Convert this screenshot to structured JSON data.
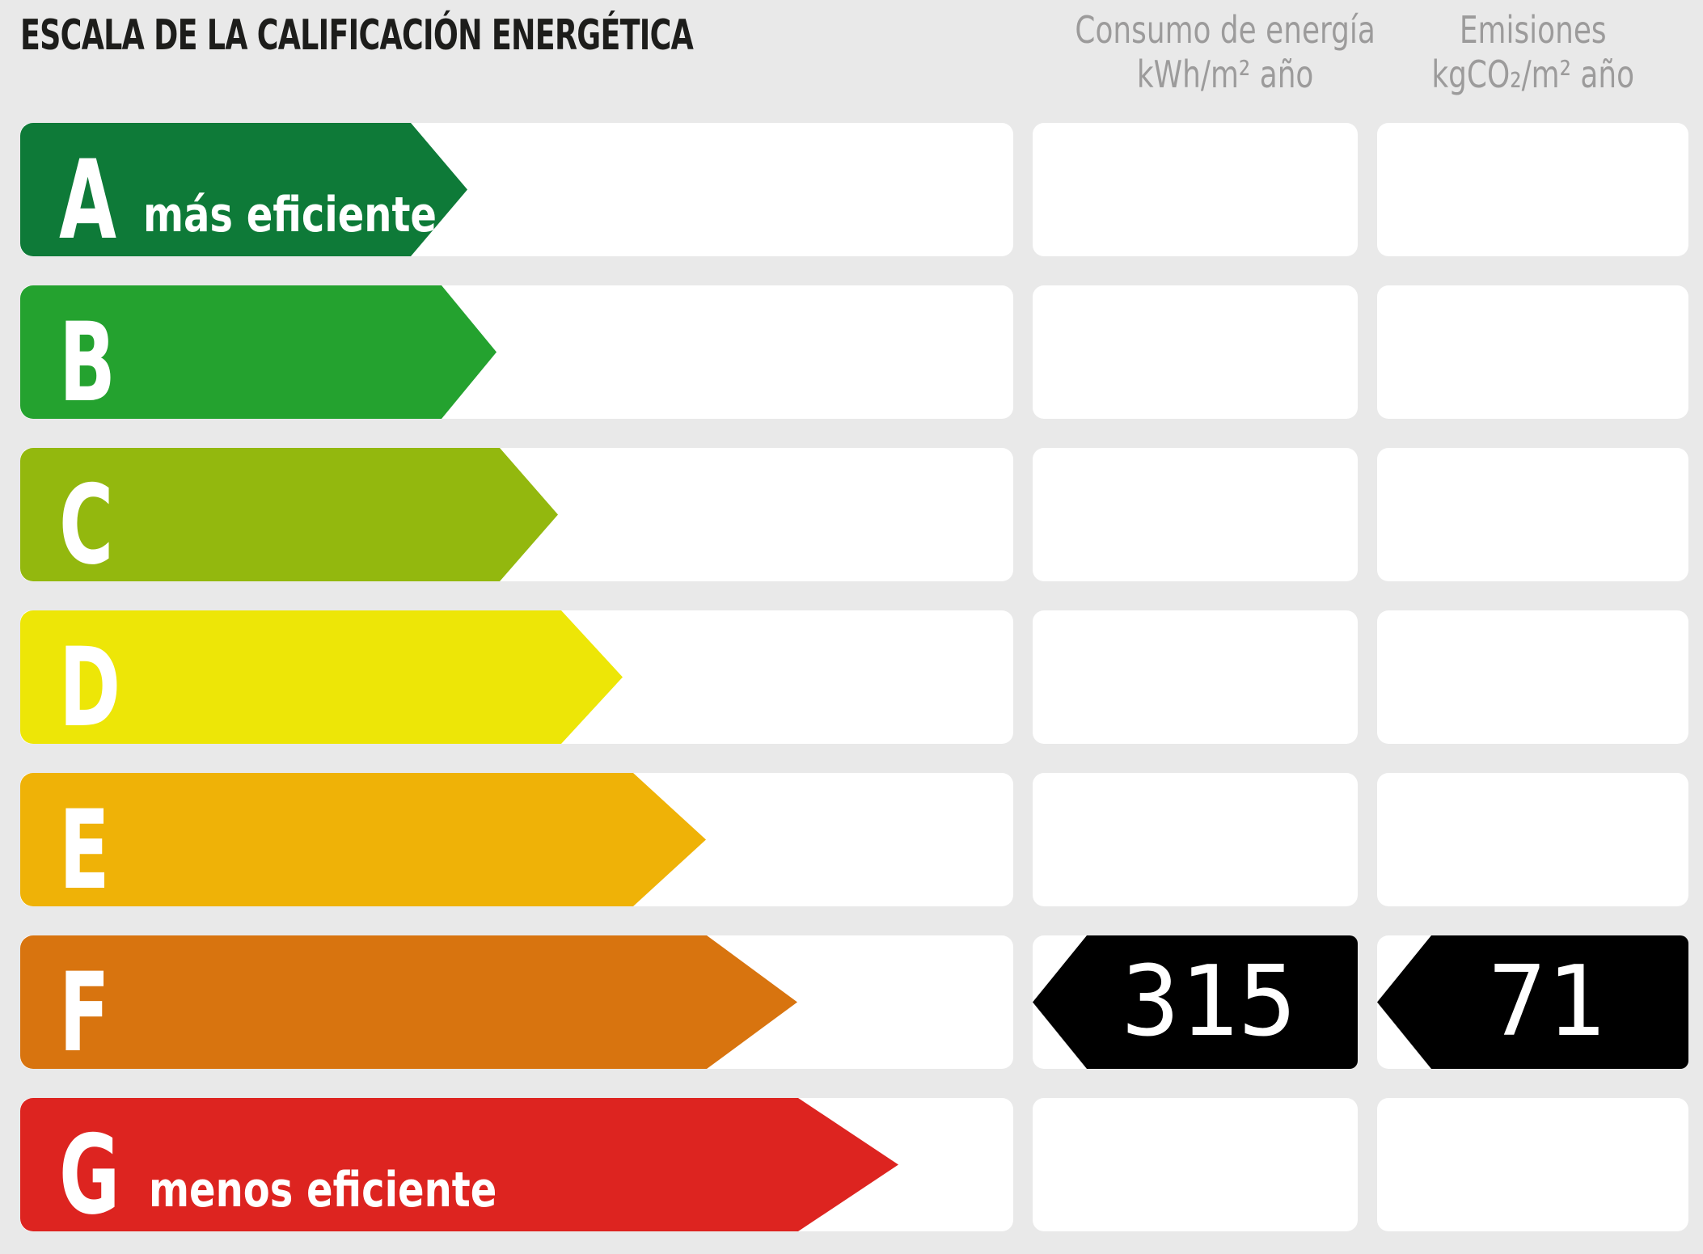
{
  "title": "ESCALA DE LA CALIFICACIÓN ENERGÉTICA",
  "columns": {
    "consumption": {
      "line1": "Consumo de energía",
      "line2": "kWh/m² año"
    },
    "emissions": {
      "line1": "Emisiones",
      "line2": "kgCO₂/m² año"
    }
  },
  "scale": {
    "ratings": [
      {
        "letter": "A",
        "caption": "más eficiente",
        "color": "#0e7a38",
        "arrow_width": 553,
        "tip_depth": 70
      },
      {
        "letter": "B",
        "caption": "",
        "color": "#24a22f",
        "arrow_width": 589,
        "tip_depth": 68
      },
      {
        "letter": "C",
        "caption": "",
        "color": "#93b80e",
        "arrow_width": 665,
        "tip_depth": 72
      },
      {
        "letter": "D",
        "caption": "",
        "color": "#ede607",
        "arrow_width": 745,
        "tip_depth": 76
      },
      {
        "letter": "E",
        "caption": "",
        "color": "#efb207",
        "arrow_width": 848,
        "tip_depth": 90
      },
      {
        "letter": "F",
        "caption": "",
        "color": "#d8740f",
        "arrow_width": 961,
        "tip_depth": 112
      },
      {
        "letter": "G",
        "caption": "menos eficiente",
        "color": "#dd2420",
        "arrow_width": 1086,
        "tip_depth": 124
      }
    ]
  },
  "result": {
    "rating_letter": "F",
    "consumption_value": "315",
    "emissions_value": "71",
    "arrow_color": "#000000",
    "arrow_tip_depth": 67,
    "text_color": "#ffffff"
  },
  "colors": {
    "background": "#e9e9e9",
    "track_background": "#ffffff",
    "title_text": "#1d1d1b",
    "header_text": "#9c9b9b"
  },
  "chart_data": {
    "type": "bar",
    "title": "ESCALA DE LA CALIFICACIÓN ENERGÉTICA",
    "categories": [
      "A",
      "B",
      "C",
      "D",
      "E",
      "F",
      "G"
    ],
    "values": [
      553,
      589,
      665,
      745,
      848,
      961,
      1086
    ],
    "colors": [
      "#0e7a38",
      "#24a22f",
      "#93b80e",
      "#ede607",
      "#efb207",
      "#d8740f",
      "#dd2420"
    ],
    "annotations": [
      "A = más eficiente",
      "G = menos eficiente"
    ],
    "selected_rating": "F",
    "consumption_kwh_m2_year": 315,
    "emissions_kgco2_m2_year": 71,
    "column_headers": [
      "Consumo de energía kWh/m² año",
      "Emisiones kgCO₂/m² año"
    ],
    "legend_position": "none",
    "grid": false
  }
}
